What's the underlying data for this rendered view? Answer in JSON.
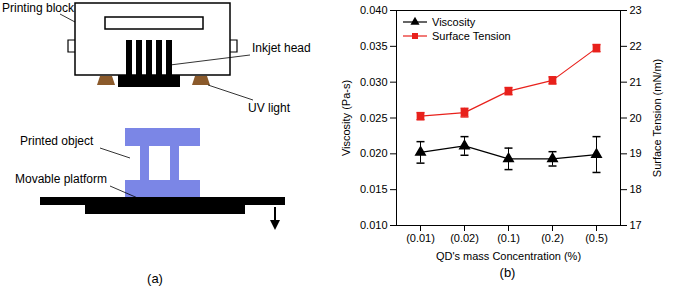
{
  "diagram": {
    "labels": {
      "printing_block": "Printing block",
      "inkjet_head": "Inkjet head",
      "uv_light": "UV light",
      "printed_object": "Printed object",
      "movable_platform": "Movable platform"
    },
    "panel_label": "(a)"
  },
  "chart_data": {
    "type": "line",
    "panel_label": "(b)",
    "x_label": "QD's mass Concentration (%)",
    "y_label": "Viscosity (Pa-s)",
    "y2_label": "Surface Tension (mN/m)",
    "categories": [
      "(0.01)",
      "(0.02)",
      "(0.1)",
      "(0.2)",
      "(0.5)"
    ],
    "ylim": [
      0.01,
      0.04
    ],
    "yticks": [
      {
        "value": 0.01,
        "label": "0.010"
      },
      {
        "value": 0.015,
        "label": "0.015"
      },
      {
        "value": 0.02,
        "label": "0.020"
      },
      {
        "value": 0.025,
        "label": "0.025"
      },
      {
        "value": 0.03,
        "label": "0.030"
      },
      {
        "value": 0.035,
        "label": "0.035"
      },
      {
        "value": 0.04,
        "label": "0.040"
      }
    ],
    "y2lim": [
      17,
      23
    ],
    "y2ticks": [
      17,
      18,
      19,
      20,
      21,
      22,
      23
    ],
    "grid": false,
    "legend": "top-left",
    "series": [
      {
        "name": "Viscosity",
        "color": "#000000",
        "marker": "triangle",
        "line_style": "solid",
        "values": [
          0.0202,
          0.0211,
          0.0193,
          0.0193,
          0.0199
        ],
        "errors": [
          0.0015,
          0.0013,
          0.0015,
          0.001,
          0.0025
        ]
      },
      {
        "name": "Surface Tension",
        "color": "#e8211c",
        "marker": "square",
        "line_style": "solid",
        "axis": "y2",
        "values": [
          20.05,
          20.15,
          20.75,
          21.05,
          21.95
        ],
        "errors": [
          0.1,
          0.12,
          0.1,
          0.1,
          0.1
        ]
      }
    ]
  }
}
